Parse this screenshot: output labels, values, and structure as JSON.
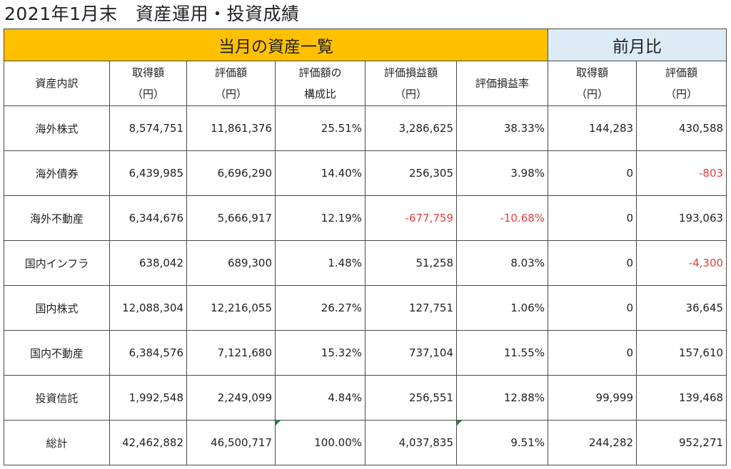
{
  "title": "2021年1月末　資産運用・投資成績",
  "bands": {
    "current": "当月の資産一覧",
    "previous": "前月比"
  },
  "headers": [
    {
      "lines": [
        "資産内訳"
      ]
    },
    {
      "lines": [
        "取得額",
        "（円）"
      ]
    },
    {
      "lines": [
        "評価額",
        "（円）"
      ]
    },
    {
      "lines": [
        "評価額の",
        "構成比"
      ]
    },
    {
      "lines": [
        "評価損益額",
        "（円）"
      ]
    },
    {
      "lines": [
        "評価損益率"
      ]
    },
    {
      "lines": [
        "取得額",
        "（円）"
      ]
    },
    {
      "lines": [
        "評価額",
        "（円）"
      ]
    }
  ],
  "rows": [
    {
      "asset": "海外株式",
      "cost": "8,574,751",
      "value": "11,861,376",
      "share": "25.51%",
      "pl": "3,286,625",
      "pl_rate": "38.33%",
      "mom_cost": "144,283",
      "mom_value": "430,588"
    },
    {
      "asset": "海外債券",
      "cost": "6,439,985",
      "value": "6,696,290",
      "share": "14.40%",
      "pl": "256,305",
      "pl_rate": "3.98%",
      "mom_cost": "0",
      "mom_value": "-803"
    },
    {
      "asset": "海外不動産",
      "cost": "6,344,676",
      "value": "5,666,917",
      "share": "12.19%",
      "pl": "-677,759",
      "pl_rate": "-10.68%",
      "mom_cost": "0",
      "mom_value": "193,063"
    },
    {
      "asset": "国内インフラ",
      "cost": "638,042",
      "value": "689,300",
      "share": "1.48%",
      "pl": "51,258",
      "pl_rate": "8.03%",
      "mom_cost": "0",
      "mom_value": "-4,300"
    },
    {
      "asset": "国内株式",
      "cost": "12,088,304",
      "value": "12,216,055",
      "share": "26.27%",
      "pl": "127,751",
      "pl_rate": "1.06%",
      "mom_cost": "0",
      "mom_value": "36,645"
    },
    {
      "asset": "国内不動産",
      "cost": "6,384,576",
      "value": "7,121,680",
      "share": "15.32%",
      "pl": "737,104",
      "pl_rate": "11.55%",
      "mom_cost": "0",
      "mom_value": "157,610"
    },
    {
      "asset": "投資信託",
      "cost": "1,992,548",
      "value": "2,249,099",
      "share": "4.84%",
      "pl": "256,551",
      "pl_rate": "12.88%",
      "mom_cost": "99,999",
      "mom_value": "139,468"
    },
    {
      "asset": "総計",
      "cost": "42,462,882",
      "value": "46,500,717",
      "share": "100.00%",
      "pl": "4,037,835",
      "pl_rate": "9.51%",
      "mom_cost": "244,282",
      "mom_value": "952,271"
    }
  ],
  "colors": {
    "band_current": "#ffc000",
    "band_previous": "#ddebf7",
    "negative_text": "#e83e3e",
    "cell_flag": "#1e8a3c"
  }
}
